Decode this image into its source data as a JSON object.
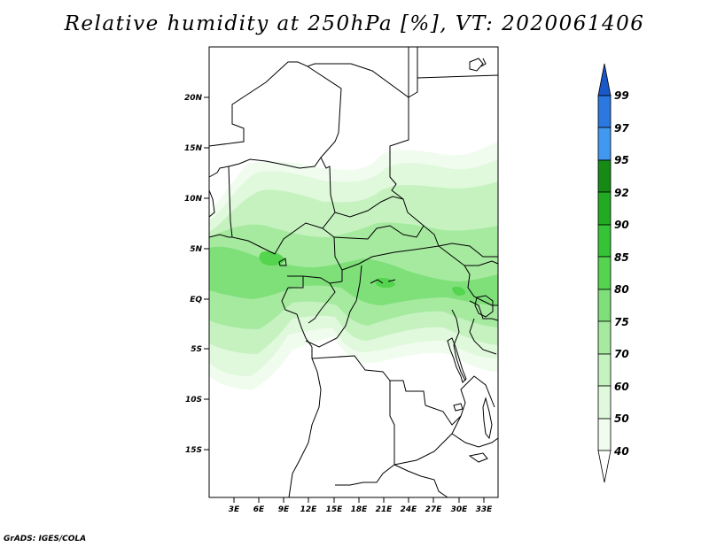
{
  "title": "Relative humidity at 250hPa [%], VT: 2020061406",
  "credit": "GrADS: IGES/COLA",
  "map": {
    "lat_labels": [
      "20N",
      "15N",
      "10N",
      "5N",
      "EQ",
      "5S",
      "10S",
      "15S"
    ],
    "lon_labels": [
      "3E",
      "6E",
      "9E",
      "12E",
      "15E",
      "18E",
      "21E",
      "24E",
      "27E",
      "30E",
      "33E"
    ]
  },
  "colorbar": {
    "labels": [
      "40",
      "50",
      "60",
      "70",
      "75",
      "80",
      "85",
      "90",
      "92",
      "95",
      "97",
      "99"
    ],
    "colors": {
      "40-50": "#f0fcee",
      "50-60": "#e0f8dc",
      "60-70": "#c6f2c0",
      "70-75": "#a6eaa0",
      "75-80": "#7fe07a",
      "80-85": "#55d450",
      "85-90": "#35c435",
      "90-92": "#22aa22",
      "92-95": "#158a15",
      "95-97": "#4098f0",
      "97-99": "#2a78e0",
      "99+": "#1a58c8"
    }
  }
}
